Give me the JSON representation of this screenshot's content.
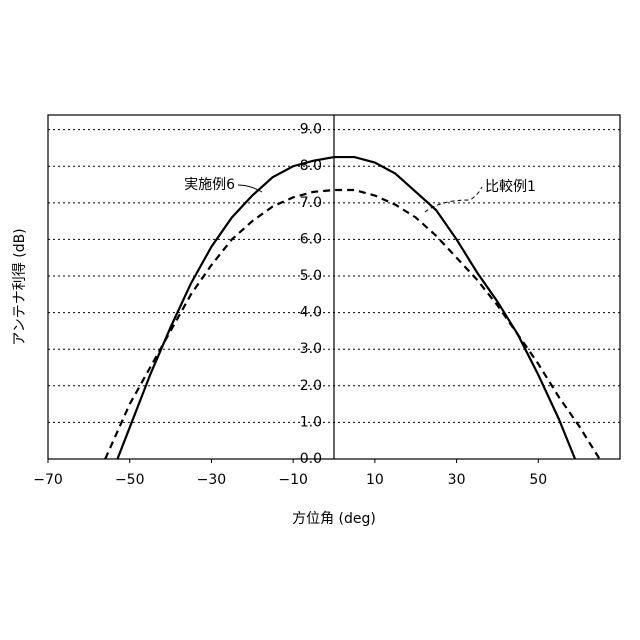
{
  "chart_data": {
    "type": "line",
    "x_label": "方位角 (deg)",
    "y_label": "アンテナ利得 (dB)",
    "xlim": [
      -70,
      70
    ],
    "ylim": [
      0,
      9.4
    ],
    "xticks": [
      {
        "value": -70,
        "label": "−70"
      },
      {
        "value": -50,
        "label": "−50"
      },
      {
        "value": -30,
        "label": "−30"
      },
      {
        "value": -10,
        "label": "−10"
      },
      10,
      30,
      50
    ],
    "yticks": [
      {
        "value": 0,
        "label": "0.0"
      },
      {
        "value": 1,
        "label": "1.0"
      },
      {
        "value": 2,
        "label": "2.0"
      },
      {
        "value": 3,
        "label": "3.0"
      },
      {
        "value": 4,
        "label": "4.0"
      },
      {
        "value": 5,
        "label": "5.0"
      },
      {
        "value": 6,
        "label": "6.0"
      },
      {
        "value": 7,
        "label": "7.0"
      },
      {
        "value": 8,
        "label": "8.0"
      },
      {
        "value": 9,
        "label": "9.0"
      }
    ],
    "grid": true,
    "series": [
      {
        "name": "実施例6",
        "color": "#000000",
        "dash": false,
        "x": [
          -53,
          -45,
          -40,
          -35,
          -30,
          -25,
          -20,
          -15,
          -10,
          -5,
          0,
          5,
          10,
          15,
          20,
          25,
          30,
          35,
          40,
          45,
          50,
          55,
          59
        ],
        "values": [
          0,
          2.3,
          3.6,
          4.8,
          5.8,
          6.6,
          7.2,
          7.7,
          8.0,
          8.15,
          8.25,
          8.25,
          8.1,
          7.8,
          7.3,
          6.8,
          6.0,
          5.1,
          4.3,
          3.4,
          2.3,
          1.1,
          0
        ]
      },
      {
        "name": "比較例1",
        "color": "#000000",
        "dash": true,
        "x": [
          -56,
          -50,
          -45,
          -40,
          -35,
          -30,
          -25,
          -20,
          -15,
          -10,
          -5,
          0,
          5,
          10,
          15,
          20,
          25,
          30,
          35,
          40,
          45,
          50,
          55,
          60,
          65
        ],
        "values": [
          0,
          1.5,
          2.5,
          3.5,
          4.5,
          5.3,
          6.0,
          6.5,
          6.9,
          7.15,
          7.3,
          7.35,
          7.35,
          7.2,
          6.95,
          6.6,
          6.1,
          5.5,
          4.9,
          4.2,
          3.4,
          2.6,
          1.7,
          0.9,
          0
        ]
      }
    ]
  }
}
